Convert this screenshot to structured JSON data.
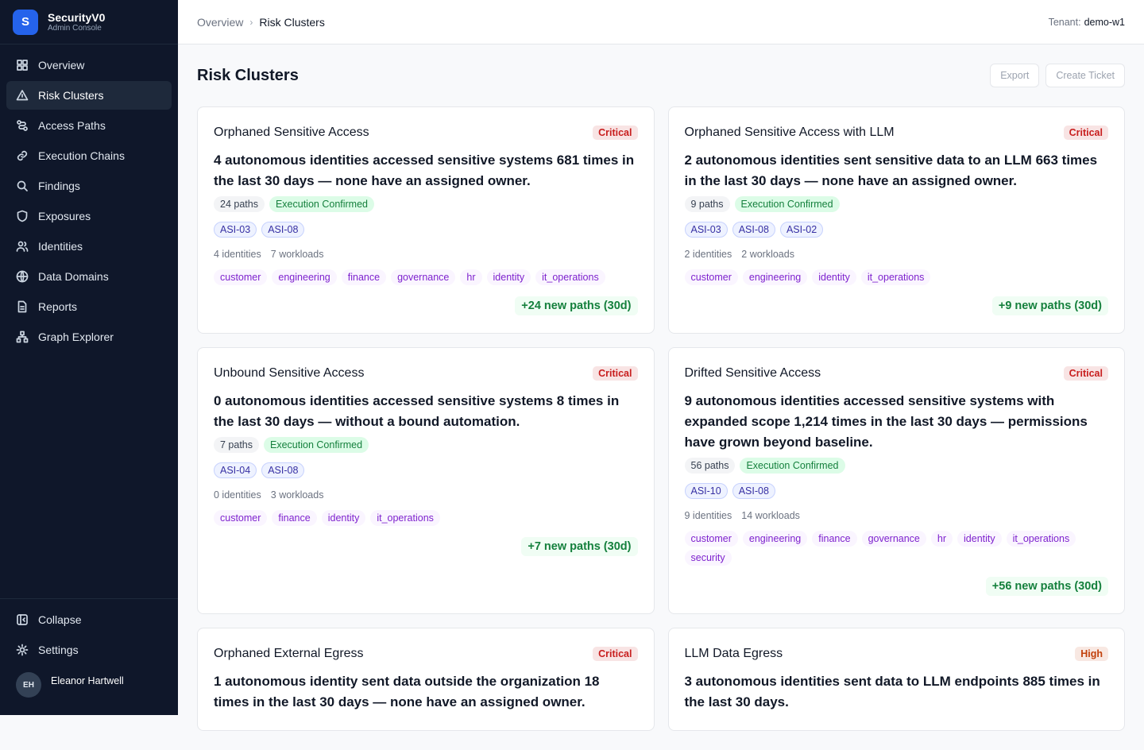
{
  "sidebar": {
    "logo_letter": "S",
    "brand": "SecurityV0",
    "subtitle": "Admin Console",
    "nav": [
      {
        "label": "Overview"
      },
      {
        "label": "Risk Clusters",
        "active": true
      },
      {
        "label": "Access Paths"
      },
      {
        "label": "Execution Chains"
      },
      {
        "label": "Findings"
      },
      {
        "label": "Exposures"
      },
      {
        "label": "Identities"
      },
      {
        "label": "Data Domains"
      },
      {
        "label": "Reports"
      },
      {
        "label": "Graph Explorer"
      }
    ],
    "footer": [
      "Collapse",
      "Settings"
    ],
    "user": {
      "initials": "EH",
      "name": "Eleanor Hartwell"
    }
  },
  "header": {
    "breadcrumb": [
      "Overview",
      "Risk Clusters"
    ],
    "tenant_label": "Tenant:",
    "tenant": "demo-w1"
  },
  "page": {
    "title": "Risk Clusters",
    "actions": [
      "Export",
      "Create Ticket"
    ]
  },
  "clusters": [
    {
      "title": "Orphaned Sensitive Access",
      "severity": "Critical",
      "severity_color": "#c81e1e",
      "summary": "4 autonomous identities accessed sensitive systems 681 times in the last 30 days — none have an assigned owner.",
      "paths": "24 paths",
      "status": "Execution Confirmed",
      "tags": [
        "ASI-03",
        "ASI-08"
      ],
      "identities": "4 identities",
      "workloads": "7 workloads",
      "domains": [
        "customer",
        "engineering",
        "finance",
        "governance",
        "hr",
        "identity",
        "it_operations"
      ],
      "trend": "+24 new paths (30d)"
    },
    {
      "title": "Orphaned Sensitive Access with LLM",
      "severity": "Critical",
      "severity_color": "#c81e1e",
      "summary": "2 autonomous identities sent sensitive data to an LLM 663 times in the last 30 days — none have an assigned owner.",
      "paths": "9 paths",
      "status": "Execution Confirmed",
      "tags": [
        "ASI-03",
        "ASI-08",
        "ASI-02"
      ],
      "identities": "2 identities",
      "workloads": "2 workloads",
      "domains": [
        "customer",
        "engineering",
        "identity",
        "it_operations"
      ],
      "trend": "+9 new paths (30d)"
    },
    {
      "title": "Unbound Sensitive Access",
      "severity": "Critical",
      "severity_color": "#c81e1e",
      "summary": "0 autonomous identities accessed sensitive systems 8 times in the last 30 days — without a bound automation.",
      "paths": "7 paths",
      "status": "Execution Confirmed",
      "tags": [
        "ASI-04",
        "ASI-08"
      ],
      "identities": "0 identities",
      "workloads": "3 workloads",
      "domains": [
        "customer",
        "finance",
        "identity",
        "it_operations"
      ],
      "trend": "+7 new paths (30d)"
    },
    {
      "title": "Drifted Sensitive Access",
      "severity": "Critical",
      "severity_color": "#c81e1e",
      "summary": "9 autonomous identities accessed sensitive systems with expanded scope 1,214 times in the last 30 days — permissions have grown beyond baseline.",
      "paths": "56 paths",
      "status": "Execution Confirmed",
      "tags": [
        "ASI-10",
        "ASI-08"
      ],
      "identities": "9 identities",
      "workloads": "14 workloads",
      "domains": [
        "customer",
        "engineering",
        "finance",
        "governance",
        "hr",
        "identity",
        "it_operations",
        "security"
      ],
      "trend": "+56 new paths (30d)"
    },
    {
      "title": "Orphaned External Egress",
      "severity": "Critical",
      "severity_color": "#c81e1e",
      "summary": "1 autonomous identity sent data outside the organization 18 times in the last 30 days — none have an assigned owner."
    },
    {
      "title": "LLM Data Egress",
      "severity": "High",
      "severity_color": "#c2410c",
      "summary": "3 autonomous identities sent data to LLM endpoints 885 times in the last 30 days."
    }
  ]
}
